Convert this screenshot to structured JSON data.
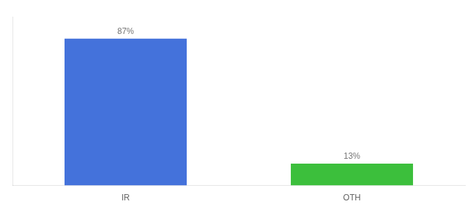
{
  "chart_data": {
    "type": "bar",
    "categories": [
      "IR",
      "OTH"
    ],
    "values": [
      87,
      13
    ],
    "value_labels": [
      "87%",
      "13%"
    ],
    "colors": [
      "#4472db",
      "#3cbf3c"
    ],
    "ylim": [
      0,
      100
    ],
    "data_labels": true,
    "tick_labels": "x",
    "grid": false
  }
}
